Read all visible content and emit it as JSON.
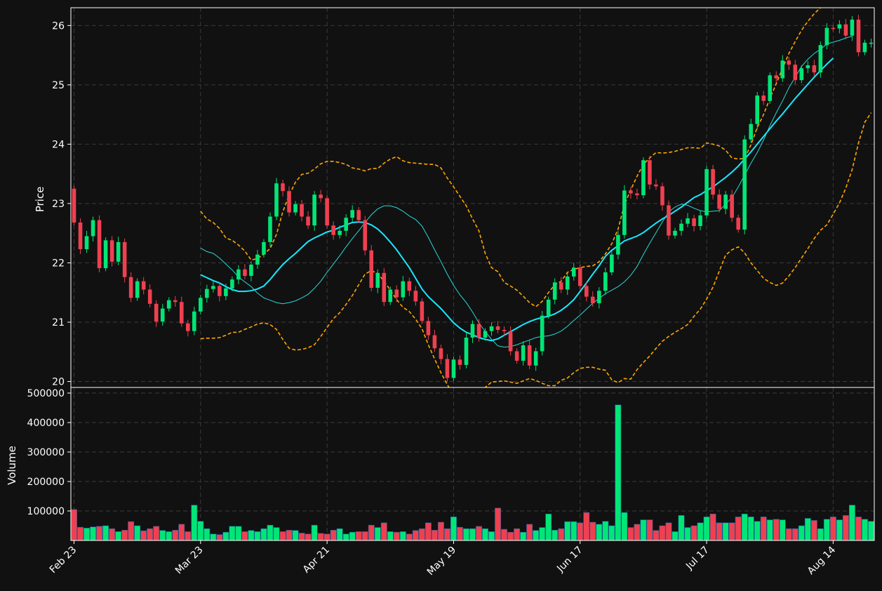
{
  "chart_data": {
    "type": "candlestick",
    "title": "",
    "colors": {
      "background": "#111111",
      "up": "#00e676",
      "down": "#ef4050",
      "ma_short": "#2ad8d8",
      "ma_long": "#18e8ff",
      "bollinger": "#ffa500",
      "grid": "#3a3a3a"
    },
    "price_panel": {
      "ylabel": "Price",
      "ylim": [
        19.9,
        26.3
      ],
      "yticks": [
        20,
        21,
        22,
        23,
        24,
        25,
        26
      ],
      "grid": true
    },
    "volume_panel": {
      "ylabel": "Volume",
      "ylim": [
        0,
        500000
      ],
      "yticks": [
        100000,
        200000,
        300000,
        400000,
        500000
      ],
      "grid": true
    },
    "x_ticks": [
      {
        "label": "Feb 23",
        "index": 0
      },
      {
        "label": "Mar 23",
        "index": 20
      },
      {
        "label": "Apr 21",
        "index": 40
      },
      {
        "label": "May 19",
        "index": 60
      },
      {
        "label": "Jun 17",
        "index": 80
      },
      {
        "label": "Jul 17",
        "index": 100
      },
      {
        "label": "Aug 14",
        "index": 120
      }
    ],
    "series": [
      {
        "name": "Price candles"
      },
      {
        "name": "Short moving average"
      },
      {
        "name": "Long moving average"
      },
      {
        "name": "Bollinger upper band"
      },
      {
        "name": "Bollinger lower band"
      },
      {
        "name": "Volume"
      }
    ],
    "closes": [
      22.68,
      22.23,
      22.45,
      22.72,
      21.91,
      22.38,
      22.02,
      22.35,
      21.76,
      21.41,
      21.69,
      21.55,
      21.31,
      21.01,
      21.23,
      21.37,
      21.34,
      20.98,
      20.85,
      21.18,
      21.41,
      21.56,
      21.61,
      21.44,
      21.57,
      21.72,
      21.89,
      21.78,
      21.97,
      22.14,
      22.35,
      22.78,
      23.34,
      23.21,
      22.85,
      22.99,
      22.78,
      22.63,
      23.15,
      23.09,
      22.63,
      22.47,
      22.54,
      22.76,
      22.89,
      22.72,
      22.21,
      21.58,
      21.83,
      21.34,
      21.55,
      21.42,
      21.69,
      21.53,
      21.35,
      21.02,
      20.78,
      20.56,
      20.38,
      20.06,
      20.37,
      20.28,
      20.74,
      20.97,
      20.74,
      20.85,
      20.93,
      20.87,
      20.85,
      20.51,
      20.35,
      20.61,
      20.27,
      20.51,
      21.11,
      21.38,
      21.67,
      21.55,
      21.77,
      21.92,
      21.61,
      21.43,
      21.32,
      21.53,
      21.84,
      22.14,
      22.47,
      23.22,
      23.17,
      23.14,
      23.73,
      23.32,
      23.29,
      22.97,
      22.46,
      22.54,
      22.66,
      22.75,
      22.62,
      22.8,
      23.58,
      23.15,
      22.91,
      23.15,
      22.76,
      22.56,
      24.08,
      24.34,
      24.82,
      24.73,
      25.16,
      25.11,
      25.41,
      25.34,
      25.08,
      25.28,
      25.33,
      25.21,
      25.67,
      25.96,
      25.95,
      26.02,
      25.83,
      26.1,
      25.55,
      25.71,
      25.71
    ],
    "ma_short": [
      null,
      null,
      null,
      null,
      null,
      null,
      null,
      null,
      null,
      null,
      null,
      null,
      null,
      null,
      null,
      null,
      null,
      null,
      null,
      null,
      22.25,
      22.19,
      22.16,
      22.08,
      21.98,
      21.88,
      21.76,
      21.68,
      21.6,
      21.49,
      21.41,
      21.37,
      21.33,
      21.31,
      21.33,
      21.36,
      21.41,
      21.47,
      21.57,
      21.69,
      21.84,
      21.98,
      22.12,
      22.27,
      22.41,
      22.54,
      22.68,
      22.81,
      22.91,
      22.96,
      22.96,
      22.93,
      22.87,
      22.79,
      22.73,
      22.62,
      22.43,
      22.22,
      22.02,
      21.81,
      21.62,
      21.46,
      21.33,
      21.17,
      20.99,
      20.84,
      20.71,
      20.6,
      20.58,
      20.59,
      20.62,
      20.66,
      20.7,
      20.74,
      20.76,
      20.77,
      20.8,
      20.85,
      20.93,
      21.03,
      21.12,
      21.22,
      21.32,
      21.4,
      21.48,
      21.54,
      21.6,
      21.68,
      21.79,
      21.94,
      22.14,
      22.33,
      22.51,
      22.69,
      22.86,
      22.94,
      22.99,
      22.97,
      22.92,
      22.88,
      22.86,
      22.87,
      22.88,
      22.99,
      23.1,
      23.28,
      23.48,
      23.68,
      23.86,
      24.07,
      24.31,
      24.53,
      24.73,
      24.95,
      25.13,
      25.31,
      25.43,
      25.53,
      25.6,
      25.69,
      25.72,
      25.75,
      25.79,
      25.82
    ],
    "ma_long": [
      null,
      null,
      null,
      null,
      null,
      null,
      null,
      null,
      null,
      null,
      null,
      null,
      null,
      null,
      null,
      null,
      null,
      null,
      null,
      null,
      21.8,
      21.75,
      21.7,
      21.66,
      21.6,
      21.55,
      21.52,
      21.52,
      21.53,
      21.56,
      21.61,
      21.72,
      21.85,
      21.97,
      22.07,
      22.16,
      22.26,
      22.36,
      22.42,
      22.47,
      22.52,
      22.55,
      22.6,
      22.64,
      22.68,
      22.69,
      22.68,
      22.64,
      22.57,
      22.47,
      22.35,
      22.22,
      22.07,
      21.92,
      21.74,
      21.56,
      21.43,
      21.33,
      21.23,
      21.11,
      20.99,
      20.9,
      20.83,
      20.79,
      20.74,
      20.71,
      20.69,
      20.72,
      20.78,
      20.84,
      20.9,
      20.96,
      21.01,
      21.05,
      21.08,
      21.1,
      21.14,
      21.2,
      21.28,
      21.38,
      21.52,
      21.66,
      21.81,
      21.95,
      22.11,
      22.21,
      22.29,
      22.37,
      22.41,
      22.45,
      22.51,
      22.59,
      22.67,
      22.74,
      22.8,
      22.87,
      22.94,
      23.02,
      23.1,
      23.15,
      23.22,
      23.28,
      23.36,
      23.44,
      23.53,
      23.63,
      23.75,
      23.87,
      24.0,
      24.13,
      24.26,
      24.39,
      24.51,
      24.64,
      24.77,
      24.89,
      25.01,
      25.13,
      25.24,
      25.35,
      25.45
    ],
    "boll_upper": [
      null,
      null,
      null,
      null,
      null,
      null,
      null,
      null,
      null,
      null,
      null,
      null,
      null,
      null,
      null,
      null,
      null,
      null,
      null,
      null,
      22.87,
      22.74,
      22.68,
      22.58,
      22.42,
      22.38,
      22.3,
      22.2,
      22.05,
      22.07,
      22.15,
      22.24,
      22.48,
      22.86,
      23.14,
      23.36,
      23.49,
      23.51,
      23.58,
      23.67,
      23.71,
      23.71,
      23.69,
      23.66,
      23.6,
      23.58,
      23.55,
      23.59,
      23.59,
      23.68,
      23.75,
      23.79,
      23.72,
      23.69,
      23.68,
      23.67,
      23.66,
      23.66,
      23.6,
      23.43,
      23.28,
      23.12,
      22.96,
      22.74,
      22.54,
      22.16,
      21.92,
      21.85,
      21.67,
      21.61,
      21.54,
      21.44,
      21.33,
      21.26,
      21.35,
      21.5,
      21.63,
      21.69,
      21.84,
      21.89,
      21.92,
      21.94,
      21.95,
      22.02,
      22.15,
      22.32,
      22.57,
      22.98,
      23.23,
      23.46,
      23.66,
      23.77,
      23.86,
      23.85,
      23.86,
      23.88,
      23.91,
      23.94,
      23.94,
      23.93,
      24.02,
      24.0,
      23.97,
      23.9,
      23.77,
      23.75,
      23.76,
      23.99,
      24.28,
      24.5,
      24.77,
      25.02,
      25.28,
      25.53,
      25.73,
      25.92,
      26.07,
      26.2,
      26.3,
      26.38,
      26.45,
      26.52,
      26.59,
      26.67,
      26.77
    ],
    "boll_lower": [
      null,
      null,
      null,
      null,
      null,
      null,
      null,
      null,
      null,
      null,
      null,
      null,
      null,
      null,
      null,
      null,
      null,
      null,
      null,
      null,
      20.72,
      20.73,
      20.73,
      20.74,
      20.78,
      20.83,
      20.83,
      20.88,
      20.92,
      20.97,
      20.99,
      20.96,
      20.88,
      20.71,
      20.56,
      20.53,
      20.54,
      20.57,
      20.62,
      20.76,
      20.91,
      21.06,
      21.16,
      21.3,
      21.45,
      21.63,
      21.81,
      21.87,
      21.82,
      21.69,
      21.54,
      21.38,
      21.25,
      21.18,
      21.05,
      20.89,
      20.62,
      20.38,
      20.15,
      19.95,
      19.77,
      19.58,
      19.59,
      19.65,
      19.76,
      19.9,
      19.99,
      20.0,
      20.01,
      19.99,
      19.97,
      20.01,
      20.05,
      20.02,
      19.97,
      19.93,
      19.93,
      20.02,
      20.06,
      20.15,
      20.22,
      20.24,
      20.24,
      20.21,
      20.19,
      20.03,
      19.98,
      20.05,
      20.04,
      20.2,
      20.32,
      20.43,
      20.56,
      20.68,
      20.76,
      20.83,
      20.89,
      20.96,
      21.1,
      21.22,
      21.39,
      21.59,
      21.86,
      22.13,
      22.22,
      22.27,
      22.17,
      22.0,
      21.87,
      21.74,
      21.67,
      21.62,
      21.66,
      21.78,
      21.92,
      22.08,
      22.24,
      22.41,
      22.55,
      22.64,
      22.82,
      23.01,
      23.26,
      23.57,
      24.02,
      24.37,
      24.53
    ],
    "volumes": [
      105000,
      45000,
      42000,
      46000,
      48000,
      50000,
      40000,
      30000,
      35000,
      64000,
      50000,
      33000,
      40000,
      48000,
      34000,
      30000,
      35000,
      55000,
      30000,
      120000,
      65000,
      40000,
      22000,
      20000,
      28000,
      48000,
      48000,
      30000,
      34000,
      30000,
      40000,
      52000,
      44000,
      30000,
      35000,
      34000,
      25000,
      22000,
      52000,
      24000,
      22000,
      35000,
      40000,
      22000,
      28000,
      30000,
      30000,
      52000,
      44000,
      60000,
      30000,
      28000,
      30000,
      22000,
      34000,
      40000,
      60000,
      35000,
      62000,
      40000,
      80000,
      45000,
      40000,
      40000,
      48000,
      40000,
      30000,
      110000,
      38000,
      28000,
      40000,
      28000,
      55000,
      34000,
      44000,
      90000,
      35000,
      40000,
      64000,
      64000,
      60000,
      95000,
      62000,
      55000,
      65000,
      50000,
      460000,
      95000,
      44000,
      55000,
      70000,
      70000,
      34000,
      50000,
      60000,
      30000,
      85000,
      44000,
      50000,
      60000,
      80000,
      90000,
      60000,
      60000,
      60000,
      80000,
      90000,
      80000,
      65000,
      80000,
      70000,
      72000,
      70000,
      40000,
      40000,
      50000,
      75000,
      68000,
      40000,
      72000,
      80000,
      70000,
      85000,
      120000,
      80000,
      72000,
      65000
    ]
  }
}
